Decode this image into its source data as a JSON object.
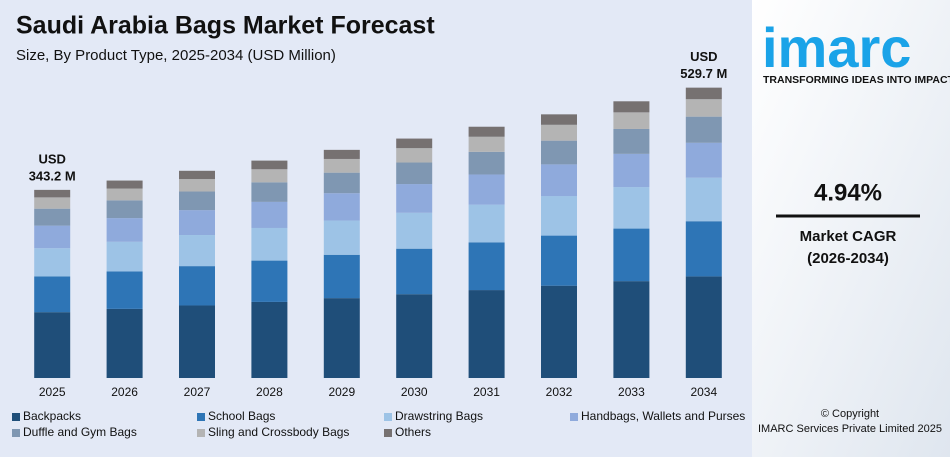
{
  "chart_data": {
    "type": "stacked-bar",
    "title": "Saudi Arabia Bags Market Forecast",
    "subtitle": "Size, By Product Type, 2025-2034 (USD Million)",
    "categories": [
      "2025",
      "2026",
      "2027",
      "2028",
      "2029",
      "2030",
      "2031",
      "2032",
      "2033",
      "2034"
    ],
    "series": [
      {
        "name": "Backpacks",
        "color": "#1f4e79",
        "values": [
          120.1,
          126.1,
          132.3,
          138.8,
          145.7,
          152.9,
          160.4,
          168.4,
          176.7,
          185.4
        ]
      },
      {
        "name": "School Bags",
        "color": "#2e75b6",
        "values": [
          65.2,
          68.4,
          71.8,
          75.4,
          79.1,
          83.0,
          87.1,
          91.4,
          95.9,
          100.6
        ]
      },
      {
        "name": "Drawstring Bags",
        "color": "#9dc3e6",
        "values": [
          51.5,
          54.0,
          56.7,
          59.5,
          62.4,
          65.5,
          68.8,
          72.2,
          75.7,
          79.5
        ]
      },
      {
        "name": "Handbags, Wallets and Purses",
        "color": "#8faadc",
        "values": [
          41.2,
          43.2,
          45.4,
          47.6,
          49.9,
          52.4,
          55.0,
          57.7,
          60.6,
          63.6
        ]
      },
      {
        "name": "Duffle and Gym Bags",
        "color": "#7f97b2",
        "values": [
          30.9,
          32.4,
          34.0,
          35.7,
          37.5,
          39.3,
          41.3,
          43.3,
          45.4,
          47.7
        ]
      },
      {
        "name": "Sling and Crossbody Bags",
        "color": "#b4b4b4",
        "values": [
          20.6,
          21.6,
          22.7,
          23.8,
          25.0,
          26.2,
          27.5,
          28.9,
          30.3,
          31.8
        ]
      },
      {
        "name": "Others",
        "color": "#767171",
        "values": [
          13.7,
          14.5,
          15.1,
          15.8,
          16.6,
          17.5,
          18.3,
          19.1,
          20.2,
          21.1
        ]
      }
    ],
    "ylim": [
      0,
      540
    ],
    "total_labels": [
      {
        "category": "2025",
        "prefix": "USD",
        "value": 343.2,
        "label": "343.2 M"
      },
      {
        "category": "2034",
        "prefix": "USD",
        "value": 529.7,
        "label": "529.7 M"
      }
    ]
  },
  "brand": {
    "logo": "imarc",
    "tagline": "TRANSFORMING IDEAS INTO IMPACT",
    "cagr": "4.94%",
    "cagr_label": "Market CAGR",
    "cagr_period": "(2026-2034)",
    "copyright": "© Copyright",
    "company": "IMARC Services Private Limited 2025"
  }
}
